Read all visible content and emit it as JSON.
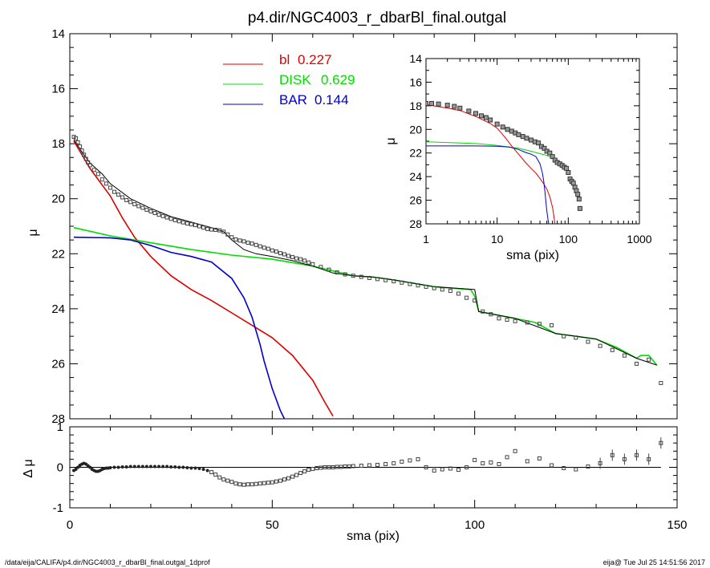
{
  "title": "p4.dir/NGC4003_r_dbarBl_final.outgal",
  "footer_left": "/data/eija/CALIFA/p4.dir/NGC4003_r_dbarBl_final.outgal_1dprof",
  "footer_right": "eija@  Tue Jul 25 14:51:56 2017",
  "colors": {
    "bl": "#e00000",
    "disk": "#00dd00",
    "bar": "#0000cc",
    "data": "#444444",
    "model": "#000000"
  },
  "chart_data": [
    {
      "id": "main",
      "type": "line",
      "xlabel": "",
      "ylabel": "μ",
      "xlim": [
        0,
        150
      ],
      "ylim": [
        28,
        14
      ],
      "y_ticks": [
        14,
        16,
        18,
        20,
        22,
        24,
        26,
        28
      ],
      "legend": [
        {
          "name": "bl",
          "value": "0.227",
          "color": "#e00000"
        },
        {
          "name": "DISK",
          "value": "0.629",
          "color": "#00dd00"
        },
        {
          "name": "BAR",
          "value": "0.144",
          "color": "#0000cc"
        }
      ],
      "series": [
        {
          "name": "bl",
          "color": "#e00000",
          "x": [
            1,
            3,
            5,
            8,
            10,
            13,
            16,
            20,
            25,
            30,
            35,
            40,
            45,
            50,
            55,
            60,
            63,
            65
          ],
          "y": [
            17.9,
            18.4,
            18.9,
            19.5,
            19.9,
            20.7,
            21.4,
            22.1,
            22.8,
            23.3,
            23.7,
            24.15,
            24.6,
            25.05,
            25.7,
            26.6,
            27.4,
            27.9
          ]
        },
        {
          "name": "DISK",
          "color": "#00dd00",
          "x": [
            1,
            10,
            20,
            30,
            40,
            50,
            60,
            70,
            75,
            80,
            90,
            99,
            100,
            101,
            110,
            115,
            120,
            125,
            130,
            135,
            140,
            141,
            143,
            145
          ],
          "y": [
            21.05,
            21.35,
            21.6,
            21.85,
            22.05,
            22.2,
            22.45,
            22.8,
            22.85,
            22.95,
            23.2,
            23.3,
            23.55,
            24.1,
            24.35,
            24.5,
            24.9,
            25.0,
            25.1,
            25.4,
            25.8,
            25.7,
            25.7,
            26.05
          ]
        },
        {
          "name": "BAR",
          "color": "#0000cc",
          "x": [
            1,
            10,
            15,
            20,
            25,
            30,
            35,
            40,
            43,
            45,
            47,
            48,
            50,
            52,
            53
          ],
          "y": [
            21.4,
            21.42,
            21.5,
            21.7,
            21.95,
            22.1,
            22.3,
            22.9,
            23.6,
            24.3,
            25.3,
            25.9,
            26.9,
            27.7,
            28.0
          ]
        },
        {
          "name": "total",
          "color": "#000000",
          "x": [
            1,
            3,
            5,
            8,
            10,
            15,
            20,
            25,
            30,
            35,
            38,
            40,
            43,
            46,
            50,
            55,
            60,
            65,
            70,
            75,
            80,
            90,
            100,
            101,
            110,
            120,
            130,
            140,
            145
          ],
          "y": [
            17.85,
            18.3,
            18.7,
            19.1,
            19.45,
            20.0,
            20.35,
            20.65,
            20.85,
            21.05,
            21.2,
            21.5,
            21.85,
            22.0,
            22.1,
            22.25,
            22.45,
            22.7,
            22.8,
            22.85,
            22.95,
            23.2,
            23.3,
            24.1,
            24.35,
            24.9,
            25.1,
            25.8,
            26.05
          ]
        },
        {
          "name": "data",
          "color": "#444444",
          "x": [
            1,
            1.5,
            2,
            2.5,
            3,
            3.5,
            4,
            4.5,
            5,
            6,
            7,
            8,
            9,
            10,
            11,
            12,
            13,
            14,
            15,
            16,
            17,
            18,
            19,
            20,
            21,
            22,
            23,
            24,
            25,
            26,
            27,
            28,
            29,
            30,
            31,
            32,
            33,
            34,
            35,
            36,
            37,
            38,
            39,
            40,
            41,
            42,
            43,
            44,
            45,
            46,
            47,
            48,
            49,
            50,
            51,
            52,
            53,
            54,
            55,
            56,
            57,
            58,
            59,
            60,
            62,
            64,
            66,
            68,
            70,
            72,
            74,
            76,
            78,
            80,
            82,
            84,
            86,
            88,
            90,
            92,
            94,
            96,
            98,
            100,
            102,
            104,
            106,
            108,
            110,
            113,
            116,
            119,
            122,
            125,
            128,
            131,
            134,
            137,
            140,
            143,
            146
          ],
          "y": [
            17.75,
            17.8,
            17.95,
            18.1,
            18.25,
            18.4,
            18.55,
            18.68,
            18.78,
            18.95,
            19.1,
            19.3,
            19.45,
            19.6,
            19.75,
            19.85,
            19.95,
            20.05,
            20.12,
            20.2,
            20.27,
            20.33,
            20.4,
            20.46,
            20.52,
            20.58,
            20.63,
            20.68,
            20.73,
            20.78,
            20.82,
            20.86,
            20.9,
            20.93,
            20.96,
            21.0,
            21.05,
            21.1,
            21.12,
            21.13,
            21.15,
            21.2,
            21.3,
            21.4,
            21.48,
            21.52,
            21.55,
            21.6,
            21.63,
            21.68,
            21.73,
            21.78,
            21.82,
            21.88,
            21.92,
            21.98,
            22.02,
            22.08,
            22.12,
            22.17,
            22.2,
            22.25,
            22.32,
            22.38,
            22.48,
            22.58,
            22.68,
            22.75,
            22.8,
            22.84,
            22.88,
            22.92,
            22.96,
            23.0,
            23.05,
            23.1,
            23.15,
            23.2,
            23.25,
            23.3,
            23.35,
            23.45,
            23.6,
            23.7,
            24.1,
            24.2,
            24.35,
            24.4,
            24.45,
            24.5,
            24.55,
            24.6,
            25.0,
            25.05,
            25.2,
            25.35,
            25.5,
            25.7,
            26.0,
            25.85,
            26.7
          ]
        }
      ]
    },
    {
      "id": "residual",
      "type": "scatter",
      "xlabel": "sma (pix)",
      "ylabel": "Δ μ",
      "xlim": [
        0,
        150
      ],
      "ylim": [
        -1,
        1
      ],
      "x_ticks": [
        0,
        50,
        100,
        150
      ],
      "y_ticks": [
        1,
        0,
        -1
      ],
      "series": [
        {
          "name": "residual",
          "x": [
            1,
            1.5,
            2,
            2.5,
            3,
            3.5,
            4,
            4.5,
            5,
            5.5,
            6,
            6.5,
            7,
            7.5,
            8,
            8.5,
            9,
            9.5,
            10,
            11,
            12,
            13,
            14,
            15,
            16,
            17,
            18,
            19,
            20,
            21,
            22,
            23,
            24,
            25,
            26,
            27,
            28,
            29,
            30,
            31,
            32,
            33,
            34,
            35,
            36,
            37,
            38,
            39,
            40,
            41,
            42,
            43,
            44,
            45,
            46,
            47,
            48,
            49,
            50,
            51,
            52,
            53,
            54,
            55,
            56,
            57,
            58,
            59,
            60,
            61,
            62,
            63,
            64,
            65,
            66,
            67,
            68,
            69,
            70,
            72,
            74,
            76,
            78,
            80,
            82,
            84,
            86,
            88,
            90,
            92,
            94,
            96,
            98,
            100,
            102,
            104,
            106,
            108,
            110,
            113,
            116,
            119,
            122,
            125,
            128,
            131,
            134,
            137,
            140,
            143,
            146
          ],
          "y": [
            -0.08,
            -0.05,
            0.0,
            0.05,
            0.08,
            0.1,
            0.08,
            0.04,
            0.0,
            -0.05,
            -0.08,
            -0.1,
            -0.1,
            -0.08,
            -0.05,
            -0.03,
            -0.02,
            -0.02,
            -0.01,
            0.0,
            0.0,
            0.01,
            0.01,
            0.02,
            0.02,
            0.02,
            0.02,
            0.02,
            0.02,
            0.02,
            0.02,
            0.02,
            0.02,
            0.01,
            0.01,
            0.0,
            0.0,
            -0.01,
            -0.02,
            -0.02,
            -0.03,
            -0.05,
            -0.08,
            -0.12,
            -0.18,
            -0.25,
            -0.3,
            -0.33,
            -0.36,
            -0.4,
            -0.42,
            -0.43,
            -0.42,
            -0.42,
            -0.41,
            -0.4,
            -0.39,
            -0.38,
            -0.37,
            -0.35,
            -0.33,
            -0.3,
            -0.27,
            -0.23,
            -0.19,
            -0.14,
            -0.1,
            -0.06,
            -0.04,
            -0.02,
            -0.01,
            0.0,
            0.0,
            0.0,
            0.01,
            0.01,
            0.02,
            0.02,
            0.03,
            0.04,
            0.05,
            0.06,
            0.08,
            0.1,
            0.14,
            0.17,
            0.2,
            0.0,
            -0.08,
            -0.05,
            -0.03,
            -0.06,
            0.0,
            0.18,
            0.1,
            0.12,
            0.08,
            0.25,
            0.4,
            0.15,
            0.22,
            0.05,
            -0.02,
            -0.05,
            0.02,
            0.1,
            0.3,
            0.2,
            0.3,
            0.2,
            0.6
          ]
        }
      ]
    },
    {
      "id": "inset",
      "type": "line",
      "xlabel": "sma (pix)",
      "ylabel": "μ",
      "xscale": "log",
      "xlim": [
        1,
        1000
      ],
      "ylim": [
        28,
        14
      ],
      "x_ticks": [
        1,
        10,
        100,
        1000
      ],
      "y_ticks": [
        14,
        16,
        18,
        20,
        22,
        24,
        26,
        28
      ],
      "series": [
        {
          "name": "bl",
          "color": "#e00000",
          "x": [
            1,
            2,
            3,
            5,
            8,
            10,
            13,
            16,
            20,
            25,
            30,
            35,
            40,
            45,
            50,
            55,
            60,
            63,
            65
          ],
          "y": [
            17.9,
            18.2,
            18.4,
            18.9,
            19.5,
            19.9,
            20.7,
            21.4,
            22.1,
            22.8,
            23.3,
            23.7,
            24.15,
            24.6,
            25.05,
            25.7,
            26.6,
            27.4,
            28.0
          ]
        },
        {
          "name": "DISK",
          "color": "#00dd00",
          "x": [
            1,
            5,
            10,
            20,
            30,
            40,
            50,
            60,
            70,
            80
          ],
          "y": [
            21.05,
            21.2,
            21.35,
            21.6,
            21.85,
            22.05,
            22.2,
            22.45,
            22.8,
            22.95
          ]
        },
        {
          "name": "BAR",
          "color": "#0000cc",
          "x": [
            1,
            5,
            10,
            15,
            20,
            25,
            30,
            35,
            40,
            43,
            45,
            47,
            48,
            50,
            52,
            53,
            54
          ],
          "y": [
            21.4,
            21.4,
            21.42,
            21.5,
            21.7,
            21.95,
            22.1,
            22.3,
            22.9,
            23.6,
            24.3,
            25.3,
            25.9,
            26.9,
            27.7,
            28.0,
            28.0
          ]
        },
        {
          "name": "data",
          "color": "#444444",
          "x": [
            1,
            1.2,
            1.5,
            2,
            2.5,
            3,
            4,
            5,
            6,
            7,
            8,
            10,
            12,
            14,
            16,
            18,
            20,
            23,
            26,
            30,
            34,
            38,
            42,
            46,
            50,
            55,
            60,
            65,
            70,
            76,
            82,
            88,
            94,
            100,
            106,
            112,
            118,
            124,
            130,
            136,
            142,
            146
          ],
          "y": [
            17.8,
            17.8,
            17.85,
            17.95,
            18.05,
            18.2,
            18.45,
            18.65,
            18.85,
            19.0,
            19.2,
            19.55,
            19.8,
            20.0,
            20.15,
            20.3,
            20.45,
            20.6,
            20.75,
            20.9,
            21.05,
            21.15,
            21.45,
            21.6,
            21.85,
            22.0,
            22.3,
            22.6,
            22.8,
            22.92,
            23.05,
            23.2,
            23.3,
            23.65,
            24.2,
            24.4,
            24.55,
            24.9,
            25.2,
            25.5,
            25.9,
            26.7
          ]
        }
      ]
    }
  ]
}
